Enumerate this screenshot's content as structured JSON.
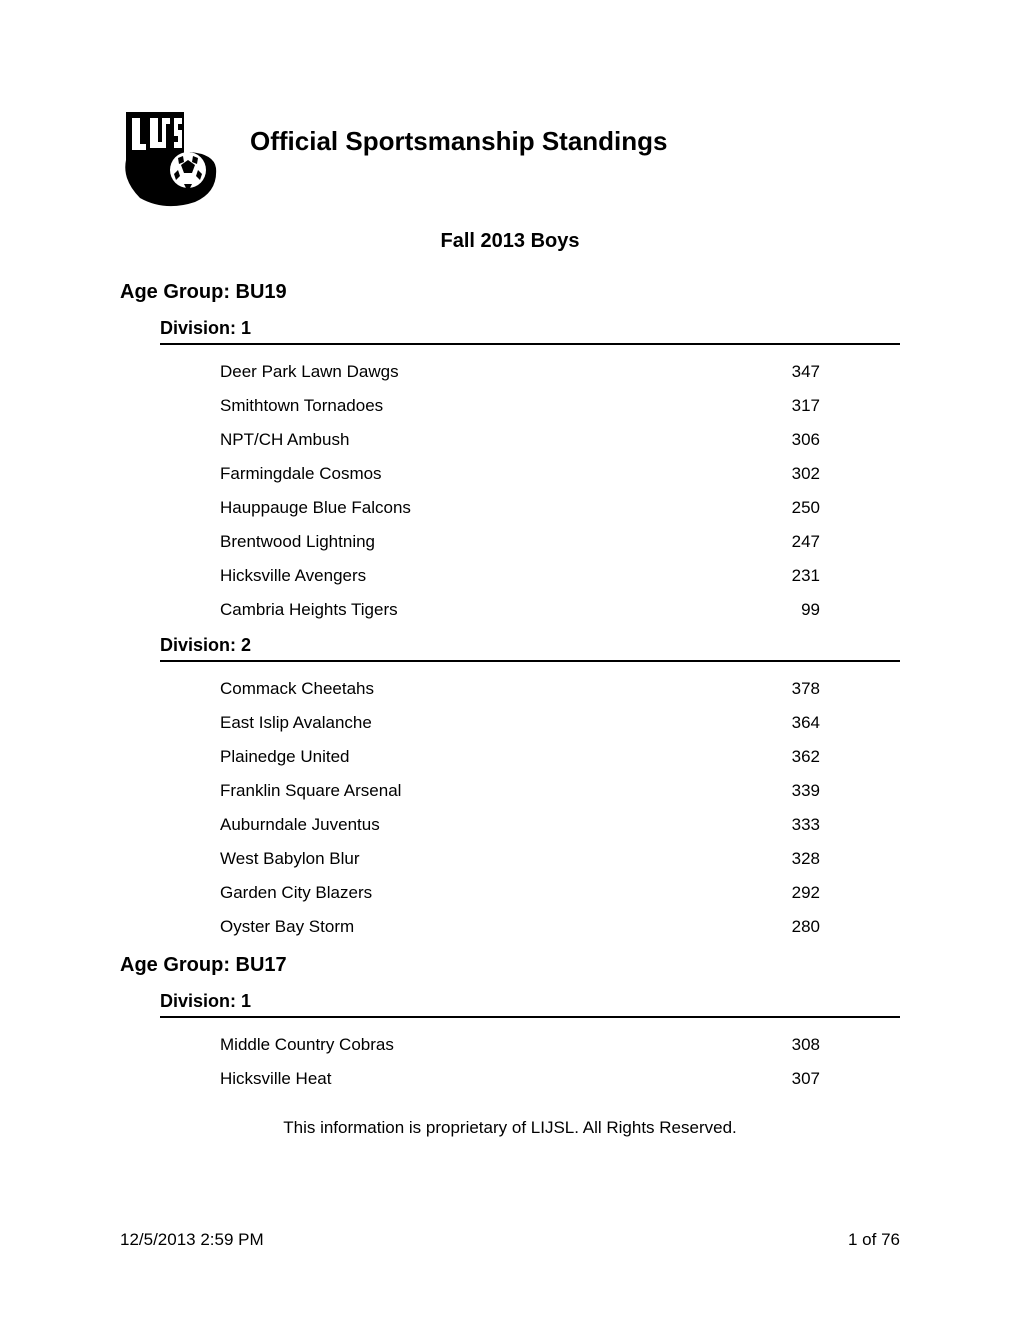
{
  "header": {
    "title": "Official Sportsmanship Standings",
    "subtitle": "Fall 2013 Boys",
    "logo_alt": "LIJSL Long Island Junior Soccer League"
  },
  "age_group_label_prefix": "Age Group: ",
  "division_label_prefix": "Division: ",
  "age_groups": [
    {
      "name": "BU19",
      "divisions": [
        {
          "number": "1",
          "teams": [
            {
              "name": "Deer Park Lawn Dawgs",
              "score": "347"
            },
            {
              "name": "Smithtown Tornadoes",
              "score": "317"
            },
            {
              "name": "NPT/CH Ambush",
              "score": "306"
            },
            {
              "name": "Farmingdale Cosmos",
              "score": "302"
            },
            {
              "name": "Hauppauge Blue Falcons",
              "score": "250"
            },
            {
              "name": "Brentwood Lightning",
              "score": "247"
            },
            {
              "name": "Hicksville Avengers",
              "score": "231"
            },
            {
              "name": "Cambria Heights Tigers",
              "score": "99"
            }
          ]
        },
        {
          "number": "2",
          "teams": [
            {
              "name": "Commack Cheetahs",
              "score": "378"
            },
            {
              "name": "East Islip Avalanche",
              "score": "364"
            },
            {
              "name": "Plainedge United",
              "score": "362"
            },
            {
              "name": "Franklin Square Arsenal",
              "score": "339"
            },
            {
              "name": "Auburndale Juventus",
              "score": "333"
            },
            {
              "name": "West Babylon Blur",
              "score": "328"
            },
            {
              "name": "Garden City Blazers",
              "score": "292"
            },
            {
              "name": "Oyster Bay Storm",
              "score": "280"
            }
          ]
        }
      ]
    },
    {
      "name": "BU17",
      "divisions": [
        {
          "number": "1",
          "teams": [
            {
              "name": "Middle Country Cobras",
              "score": "308"
            },
            {
              "name": "Hicksville Heat",
              "score": "307"
            }
          ]
        }
      ]
    }
  ],
  "footer": {
    "note": "This information is proprietary of LIJSL. All Rights Reserved.",
    "timestamp": "12/5/2013 2:59 PM",
    "page_indicator": "1 of 76"
  },
  "colors": {
    "background": "#ffffff",
    "text": "#000000",
    "rule": "#000000"
  }
}
